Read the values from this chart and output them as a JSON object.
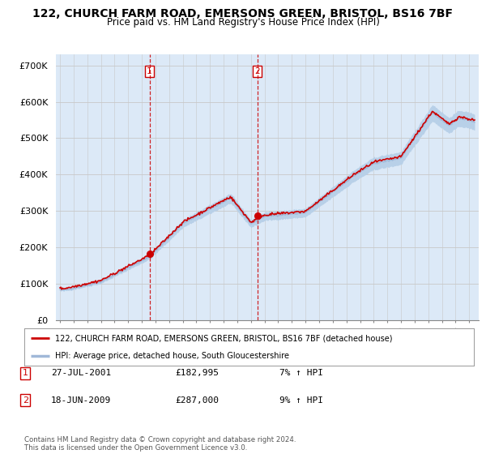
{
  "title": "122, CHURCH FARM ROAD, EMERSONS GREEN, BRISTOL, BS16 7BF",
  "subtitle": "Price paid vs. HM Land Registry's House Price Index (HPI)",
  "ylabel_ticks": [
    "£0",
    "£100K",
    "£200K",
    "£300K",
    "£400K",
    "£500K",
    "£600K",
    "£700K"
  ],
  "ytick_values": [
    0,
    100000,
    200000,
    300000,
    400000,
    500000,
    600000,
    700000
  ],
  "ylim": [
    0,
    730000
  ],
  "xlim_start": 1994.7,
  "xlim_end": 2025.7,
  "hpi_color": "#b8d0e8",
  "hpi_line_color": "#a0b8d8",
  "price_color": "#cc0000",
  "marker1_x": 2001.56,
  "marker1_y": 182995,
  "marker2_x": 2009.46,
  "marker2_y": 287000,
  "vline1_x": 2001.56,
  "vline2_x": 2009.46,
  "legend_line1": "122, CHURCH FARM ROAD, EMERSONS GREEN, BRISTOL, BS16 7BF (detached house)",
  "legend_line2": "HPI: Average price, detached house, South Gloucestershire",
  "table_entries": [
    {
      "num": "1",
      "date": "27-JUL-2001",
      "price": "£182,995",
      "change": "7% ↑ HPI"
    },
    {
      "num": "2",
      "date": "18-JUN-2009",
      "price": "£287,000",
      "change": "9% ↑ HPI"
    }
  ],
  "footer": "Contains HM Land Registry data © Crown copyright and database right 2024.\nThis data is licensed under the Open Government Licence v3.0.",
  "bg_color": "#dce9f7",
  "title_fontsize": 10,
  "subtitle_fontsize": 8.5,
  "hpi_band_factor": 0.04
}
